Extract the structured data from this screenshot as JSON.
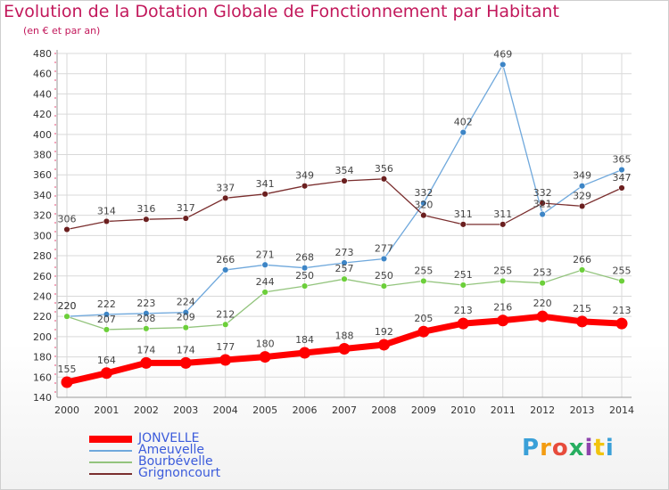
{
  "header": {
    "title": "Evolution de la Dotation Globale de Fonctionnement par Habitant",
    "subtitle": "(en € et par an)"
  },
  "logo": {
    "text": "Proxiti",
    "colors": [
      "#3aa0d8",
      "#f39c12",
      "#e74c3c",
      "#27ae60",
      "#8e44ad",
      "#f1c40f",
      "#3aa0d8"
    ]
  },
  "chart_data": {
    "type": "line",
    "title": "Evolution de la Dotation Globale de Fonctionnement par Habitant",
    "subtitle": "(en € et par an)",
    "x": [
      "2000",
      "2001",
      "2002",
      "2003",
      "2004",
      "2005",
      "2006",
      "2007",
      "2008",
      "2009",
      "2010",
      "2011",
      "2012",
      "2013",
      "2014"
    ],
    "ylim": [
      140,
      480
    ],
    "yticks": [
      140,
      160,
      180,
      200,
      220,
      240,
      260,
      280,
      300,
      320,
      340,
      360,
      380,
      400,
      420,
      440,
      460,
      480
    ],
    "grid": true,
    "legend_position": "bottom-left",
    "series": [
      {
        "name": "JONVELLE",
        "color": "#ff0000",
        "bold": true,
        "values": [
          155,
          164,
          174,
          174,
          177,
          180,
          184,
          188,
          192,
          205,
          213,
          216,
          220,
          215,
          213
        ]
      },
      {
        "name": "Ameuvelle",
        "color": "#6fa8dc",
        "marker": "#3d85c6",
        "values": [
          220,
          222,
          223,
          224,
          266,
          271,
          268,
          273,
          277,
          332,
          402,
          469,
          321,
          349,
          365
        ]
      },
      {
        "name": "Bourbévelle",
        "color": "#93c47d",
        "marker": "#6ccf3a",
        "values": [
          220,
          207,
          208,
          209,
          212,
          244,
          250,
          257,
          250,
          255,
          251,
          255,
          253,
          266,
          255
        ]
      },
      {
        "name": "Grignoncourt",
        "color": "#7a2e2e",
        "marker": "#6b1f1f",
        "values": [
          306,
          314,
          316,
          317,
          337,
          341,
          349,
          354,
          356,
          320,
          311,
          311,
          332,
          329,
          347
        ]
      }
    ]
  }
}
